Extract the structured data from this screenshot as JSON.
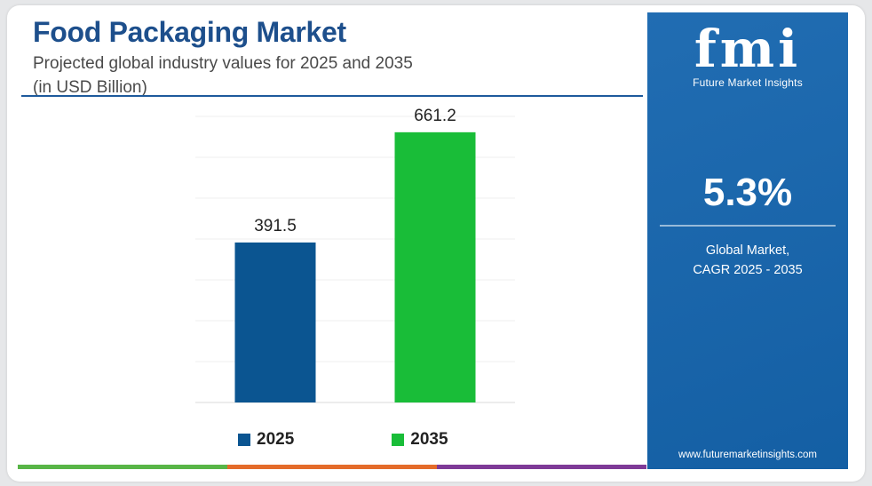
{
  "header": {
    "title": "Food Packaging Market",
    "subtitle_line1": "Projected global industry values for 2025 and 2035",
    "subtitle_line2": "(in USD Billion)"
  },
  "chart_data": {
    "type": "bar",
    "categories": [
      "2025",
      "2035"
    ],
    "values": [
      391.5,
      661.2
    ],
    "data_labels": [
      "391.5",
      "661.2"
    ],
    "colors": [
      "#0b5591",
      "#19bd38"
    ],
    "ylim": [
      0,
      700
    ],
    "grid": true,
    "legend_position": "bottom",
    "legend": [
      {
        "label": "2025",
        "color": "#0b5591"
      },
      {
        "label": "2035",
        "color": "#19bd38"
      }
    ]
  },
  "side_panel": {
    "logo_mark": "fmi",
    "brand_name": "Future Market Insights",
    "cagr_value": "5.3%",
    "cagr_caption_line1": "Global Market,",
    "cagr_caption_line2": "CAGR 2025 - 2035",
    "website": "www.futuremarketinsights.com",
    "bg_color": "#1565ae"
  },
  "bottom_strip_colors": [
    "#58b547",
    "#e46b2a",
    "#7e3a97"
  ]
}
